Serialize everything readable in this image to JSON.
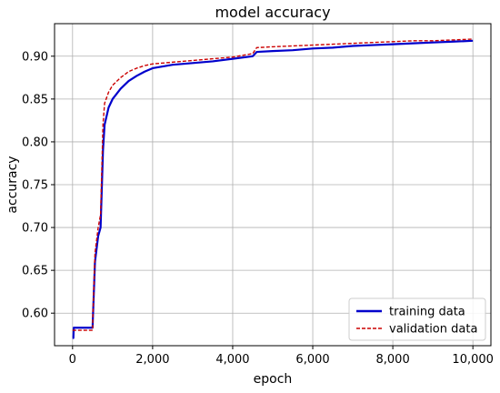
{
  "chart_data": {
    "type": "line",
    "title": "model accuracy",
    "xlabel": "epoch",
    "ylabel": "accuracy",
    "xlim": [
      -450,
      10450
    ],
    "ylim": [
      0.562,
      0.938
    ],
    "xticks": [
      0,
      2000,
      4000,
      6000,
      8000,
      10000
    ],
    "xtick_labels": [
      "0",
      "2,000",
      "4,000",
      "6,000",
      "8,000",
      "10,000"
    ],
    "yticks": [
      0.6,
      0.65,
      0.7,
      0.75,
      0.8,
      0.85,
      0.9
    ],
    "ytick_labels": [
      "0.60",
      "0.65",
      "0.70",
      "0.75",
      "0.80",
      "0.85",
      "0.90"
    ],
    "grid": true,
    "legend_position": "lower right",
    "series": [
      {
        "name": "training data",
        "color": "#0000cc",
        "style": "solid",
        "x": [
          0,
          20,
          30,
          500,
          510,
          560,
          640,
          700,
          760,
          800,
          900,
          1000,
          1200,
          1400,
          1600,
          1800,
          2000,
          2500,
          3000,
          3500,
          4000,
          4500,
          4600,
          5000,
          5500,
          6000,
          6500,
          7000,
          7500,
          8000,
          8500,
          9000,
          9500,
          10000
        ],
        "y": [
          0.571,
          0.571,
          0.583,
          0.583,
          0.597,
          0.66,
          0.69,
          0.7,
          0.79,
          0.82,
          0.84,
          0.85,
          0.862,
          0.871,
          0.877,
          0.882,
          0.886,
          0.89,
          0.892,
          0.894,
          0.897,
          0.9,
          0.905,
          0.906,
          0.907,
          0.909,
          0.91,
          0.912,
          0.913,
          0.914,
          0.915,
          0.916,
          0.917,
          0.918
        ]
      },
      {
        "name": "validation data",
        "color": "#cc0000",
        "style": "dashed",
        "x": [
          0,
          500,
          510,
          560,
          640,
          700,
          760,
          800,
          900,
          1000,
          1200,
          1400,
          1600,
          1800,
          2000,
          2500,
          3000,
          3500,
          4000,
          4500,
          4600,
          5000,
          5500,
          6000,
          6500,
          7000,
          7500,
          8000,
          8500,
          9000,
          9500,
          10000
        ],
        "y": [
          0.58,
          0.58,
          0.6,
          0.67,
          0.7,
          0.715,
          0.82,
          0.845,
          0.858,
          0.866,
          0.875,
          0.882,
          0.886,
          0.889,
          0.891,
          0.893,
          0.895,
          0.897,
          0.899,
          0.903,
          0.91,
          0.911,
          0.912,
          0.913,
          0.914,
          0.915,
          0.916,
          0.917,
          0.918,
          0.918,
          0.919,
          0.92
        ]
      }
    ]
  }
}
